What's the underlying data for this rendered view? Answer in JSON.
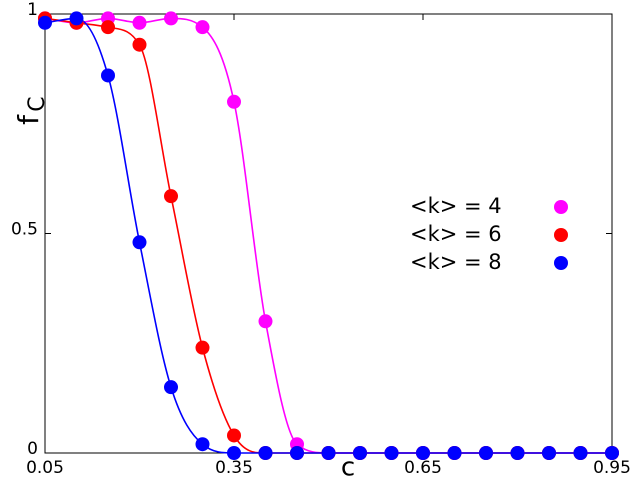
{
  "chart_data": {
    "type": "line",
    "xlabel": "c",
    "ylabel": "f",
    "ylabel_subscript": "C",
    "x": [
      0.05,
      0.1,
      0.15,
      0.2,
      0.25,
      0.3,
      0.35,
      0.4,
      0.45,
      0.5,
      0.55,
      0.6,
      0.65,
      0.7,
      0.75,
      0.8,
      0.85,
      0.9,
      0.95
    ],
    "series": [
      {
        "name": "<k> = 4",
        "color": "#ff00ff",
        "values": [
          0.99,
          0.98,
          0.99,
          0.98,
          0.99,
          0.97,
          0.8,
          0.3,
          0.02,
          0,
          0,
          0,
          0,
          0,
          0,
          0,
          0,
          0,
          0
        ]
      },
      {
        "name": "<k> = 6",
        "color": "#ff0000",
        "values": [
          0.99,
          0.98,
          0.97,
          0.93,
          0.585,
          0.24,
          0.04,
          0,
          0,
          0,
          0,
          0,
          0,
          0,
          0,
          0,
          0,
          0,
          0
        ]
      },
      {
        "name": "<k> = 8",
        "color": "#0000ff",
        "values": [
          0.98,
          0.99,
          0.86,
          0.48,
          0.15,
          0.02,
          0,
          0,
          0,
          0,
          0,
          0,
          0,
          0,
          0,
          0,
          0,
          0,
          0
        ]
      }
    ],
    "xlim": [
      0.05,
      0.95
    ],
    "xticks": [
      0.05,
      0.35,
      0.65,
      0.95
    ],
    "ylim": [
      0,
      1
    ],
    "yticks": [
      0,
      0.5,
      1
    ],
    "grid": false,
    "legend": "right"
  }
}
